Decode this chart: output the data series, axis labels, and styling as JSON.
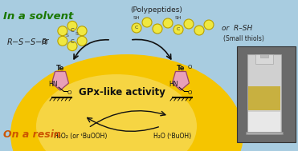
{
  "bg_color": "#a8cce0",
  "sun_color": "#f5c500",
  "sun_color2": "#f8e070",
  "catalyst_ring_color": "#e8a0b8",
  "catalyst_ring_edge": "#994466",
  "ball_face": "#f0e840",
  "ball_edge": "#b8a000",
  "text_green": "#1a7700",
  "text_orange": "#cc5500",
  "arrow_color": "#111111",
  "gpx_text": "GPx-like activity",
  "in_solvent_text": "In a solvent",
  "on_resin_text": "On a resin",
  "polypeptides_text": "(Polypeptides)",
  "rsh_line1": "or  R–SH",
  "small_thiols_text": "(Small thiols)",
  "h2o2_text": "H₂O₂ (or ᵗBuOOH)",
  "h2o_text": "H₂O (ᵗBuOH)",
  "photo_bg": "#888888",
  "photo_white": "#e8e8e8",
  "photo_yellow": "#d4b840",
  "photo_beads": "#c8a830"
}
